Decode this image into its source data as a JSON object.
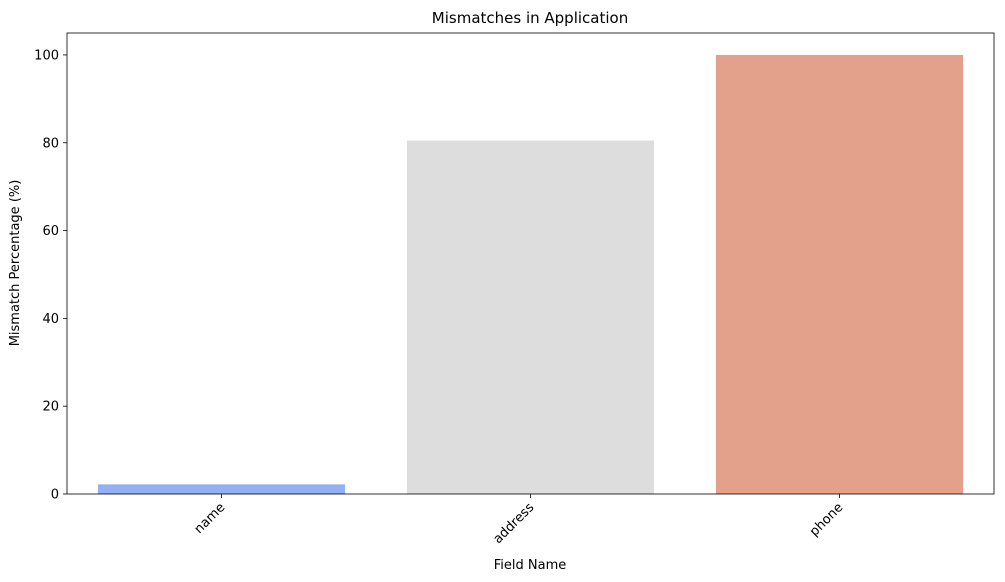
{
  "chart_data": {
    "type": "bar",
    "title": "Mismatches in Application",
    "xlabel": "Field Name",
    "ylabel": "Mismatch Percentage (%)",
    "categories": [
      "name",
      "address",
      "phone"
    ],
    "values": [
      2.2,
      80.5,
      100
    ],
    "colors": [
      "#92b1f4",
      "#dddddd",
      "#e3a08b"
    ],
    "ylim": [
      0,
      105
    ],
    "yticks": [
      0,
      20,
      40,
      60,
      80,
      100
    ],
    "grid": false,
    "x_tick_rotation_deg": 45
  }
}
